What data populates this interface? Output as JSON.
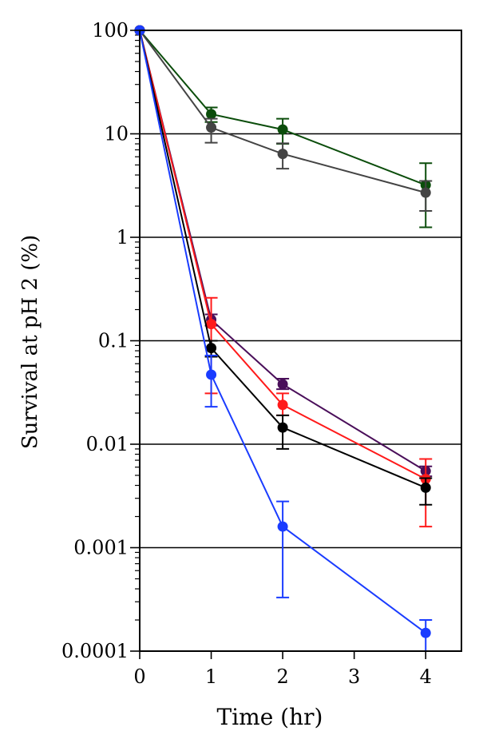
{
  "chart_data": {
    "type": "line",
    "yscale": "log",
    "title": "",
    "xlabel": "Time (hr)",
    "ylabel": "Survival at pH 2 (%)",
    "xlim": [
      0,
      4.5
    ],
    "ylim": [
      0.0001,
      100
    ],
    "xticks": [
      0,
      1,
      2,
      3,
      4
    ],
    "xtick_labels": [
      "0",
      "1",
      "2",
      "3",
      "4"
    ],
    "yticks": [
      0.0001,
      0.001,
      0.01,
      0.1,
      1,
      10,
      100
    ],
    "ytick_labels": [
      "0.0001",
      "0.001",
      "0.01",
      "0.1",
      "1",
      "10",
      "100"
    ],
    "gridlines_y": [
      0.001,
      0.01,
      0.1,
      1,
      10
    ],
    "grid": "horizontal",
    "x": [
      0,
      1,
      2,
      4
    ],
    "series": [
      {
        "name": "dark green",
        "color": "#0b4d0b",
        "values": [
          100,
          15.5,
          11,
          3.2
        ],
        "err_low": [
          100,
          13,
          8,
          1.25
        ],
        "err_high": [
          100,
          18,
          14,
          5.2
        ]
      },
      {
        "name": "grey",
        "color": "#444444",
        "values": [
          100,
          11.5,
          6.4,
          2.7
        ],
        "err_low": [
          100,
          8.2,
          4.6,
          1.8
        ],
        "err_high": [
          100,
          14,
          8.1,
          3.5
        ]
      },
      {
        "name": "purple",
        "color": "#4a0f5a",
        "values": [
          100,
          0.16,
          0.038,
          0.0055
        ],
        "err_low": [
          100,
          0.14,
          0.034,
          0.0049
        ],
        "err_high": [
          100,
          0.18,
          0.043,
          0.0061
        ]
      },
      {
        "name": "red",
        "color": "#ff1a1a",
        "values": [
          100,
          0.145,
          0.024,
          0.0046
        ],
        "err_low": [
          100,
          0.031,
          0.019,
          0.0016
        ],
        "err_high": [
          100,
          0.26,
          0.031,
          0.0072
        ]
      },
      {
        "name": "black",
        "color": "#000000",
        "values": [
          100,
          0.085,
          0.0145,
          0.0038
        ],
        "err_low": [
          100,
          0.07,
          0.009,
          0.0026
        ],
        "err_high": [
          100,
          0.1,
          0.019,
          0.0047
        ]
      },
      {
        "name": "blue",
        "color": "#1a3cff",
        "values": [
          100,
          0.047,
          0.0016,
          0.00015
        ],
        "err_low": [
          100,
          0.023,
          0.00033,
          0.0001
        ],
        "err_high": [
          100,
          0.072,
          0.0028,
          0.0002
        ]
      }
    ]
  }
}
